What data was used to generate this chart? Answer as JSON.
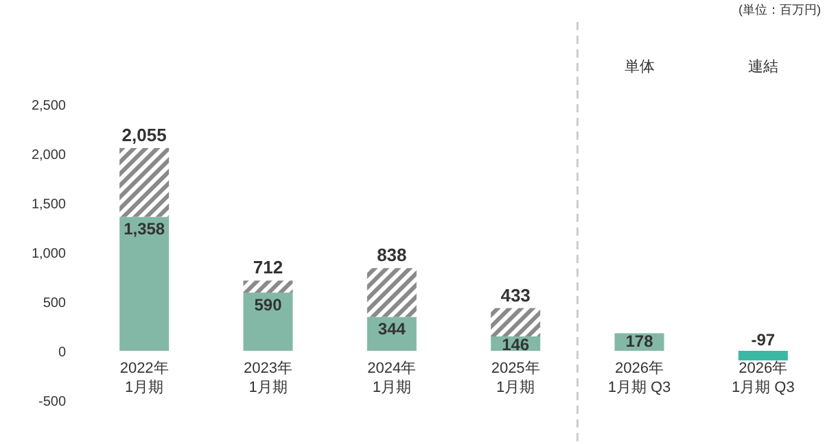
{
  "chart_data": {
    "type": "bar",
    "stacked": true,
    "categories": [
      "2022年\n1月期",
      "2023年\n1月期",
      "2024年\n1月期",
      "2025年\n1月期",
      "2026年\n1月期 Q3",
      "2026年\n1月期 Q3"
    ],
    "series": [
      {
        "color": "#84b8a6",
        "colors": [
          "#84b8a6",
          "#84b8a6",
          "#84b8a6",
          "#84b8a6",
          "#84b8a6",
          "#3bb8a4"
        ],
        "values": [
          1358,
          590,
          344,
          146,
          178,
          -97
        ],
        "value_labels": [
          "1,358",
          "590",
          "344",
          "146",
          "178",
          "-97"
        ]
      },
      {
        "color": "#8a8a8a",
        "values": [
          697,
          122,
          494,
          287,
          null,
          null
        ]
      }
    ],
    "totals": [
      "2,055",
      "712",
      "838",
      "433",
      null,
      null
    ],
    "ylim": [
      -500,
      2500
    ],
    "yticks": [
      {
        "value": -500,
        "label": "-500"
      },
      0,
      500,
      {
        "value": 1000,
        "label": "1,000"
      },
      {
        "value": 1500,
        "label": "1,500"
      },
      {
        "value": 2000,
        "label": "2,000"
      },
      {
        "value": 2500,
        "label": "2,500"
      }
    ],
    "annotations": [
      "(単位：百万円)",
      "単体",
      "連結"
    ],
    "grid": false
  }
}
